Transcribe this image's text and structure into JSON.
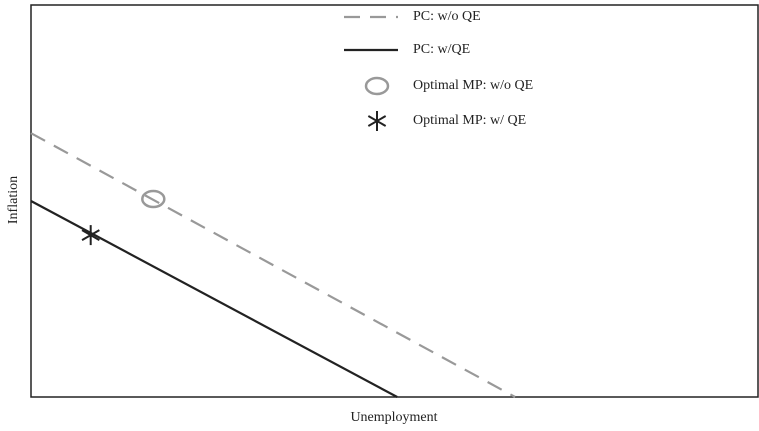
{
  "chart_data": {
    "type": "line",
    "xlabel": "Unemployment",
    "ylabel": "Inflation",
    "xlim": [
      0,
      100
    ],
    "ylim": [
      0,
      100
    ],
    "series": [
      {
        "name": "PC: w/o QE",
        "color": "#999999",
        "dash": true,
        "x": [
          0,
          66.5
        ],
        "values": [
          67.3,
          0
        ]
      },
      {
        "name": "PC: w/QE",
        "color": "#222222",
        "x": [
          0,
          50.3
        ],
        "values": [
          50,
          0
        ]
      },
      {
        "name": "Optimal MP: w/o QE",
        "color": "#999999",
        "marker": "circle",
        "x": [
          16.8
        ],
        "values": [
          50.5
        ]
      },
      {
        "name": "Optimal MP: w/ QE",
        "color": "#222222",
        "marker": "star",
        "x": [
          8.2
        ],
        "values": [
          41.3
        ]
      }
    ]
  }
}
